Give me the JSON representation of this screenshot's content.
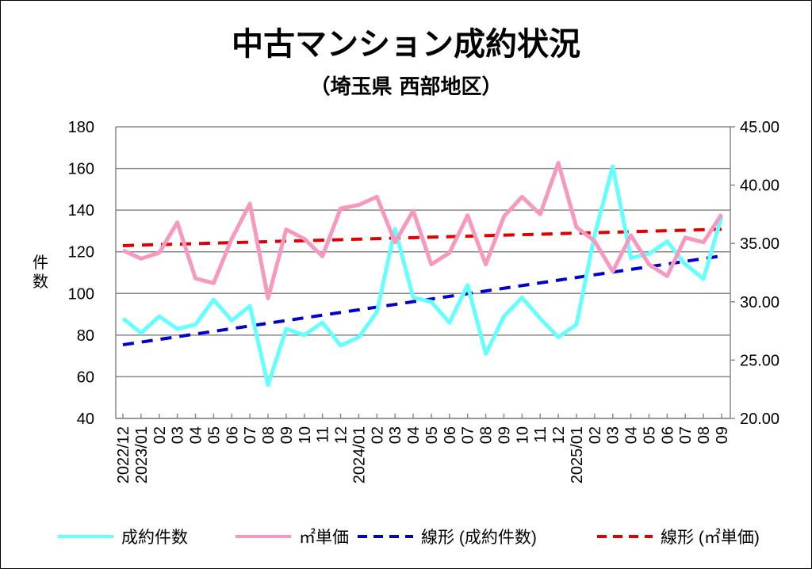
{
  "chart_data": {
    "type": "line",
    "title": "中古マンション成約状況",
    "subtitle": "（埼玉県 西部地区）",
    "ylabel": "件数",
    "y_left": {
      "range": [
        40,
        180
      ],
      "ticks": [
        "40",
        "60",
        "80",
        "100",
        "120",
        "140",
        "160",
        "180"
      ]
    },
    "y_right": {
      "range": [
        20,
        45
      ],
      "ticks": [
        "20.00",
        "25.00",
        "30.00",
        "35.00",
        "40.00",
        "45.00"
      ]
    },
    "grid": true,
    "legend_position": "bottom",
    "categories": [
      "2022/12",
      "2023/01",
      "02",
      "03",
      "04",
      "05",
      "06",
      "07",
      "08",
      "09",
      "10",
      "11",
      "12",
      "2024/01",
      "02",
      "03",
      "04",
      "05",
      "06",
      "07",
      "08",
      "09",
      "10",
      "11",
      "12",
      "2025/01",
      "02",
      "03",
      "04",
      "05",
      "06",
      "07",
      "08",
      "09"
    ],
    "series": [
      {
        "name": "成約件数",
        "axis": "left",
        "color": "#66ffff",
        "values": [
          88,
          81,
          89,
          83,
          85,
          97,
          87,
          94,
          56,
          83,
          80,
          86,
          75,
          79,
          91,
          131,
          98,
          96,
          86,
          104,
          71,
          89,
          98,
          88,
          79,
          85,
          128,
          161,
          117,
          119,
          125,
          114,
          107,
          137
        ]
      },
      {
        "name": "㎡単価",
        "axis": "right",
        "color": "#f799be",
        "values": [
          34.4,
          33.7,
          34.2,
          36.8,
          32.0,
          31.6,
          35.4,
          38.4,
          30.3,
          36.2,
          35.4,
          33.9,
          38.0,
          38.3,
          39.0,
          35.1,
          37.8,
          33.2,
          34.2,
          37.4,
          33.2,
          37.3,
          39.0,
          37.5,
          41.9,
          36.4,
          35.2,
          32.6,
          35.7,
          33.2,
          32.2,
          35.5,
          35.1,
          37.5
        ]
      }
    ],
    "trendlines": [
      {
        "name": "線形 (成約件数)",
        "of": "成約件数",
        "color": "#0000cc"
      },
      {
        "name": "線形 (㎡単価)",
        "of": "㎡単価",
        "color": "#e00000"
      }
    ]
  }
}
